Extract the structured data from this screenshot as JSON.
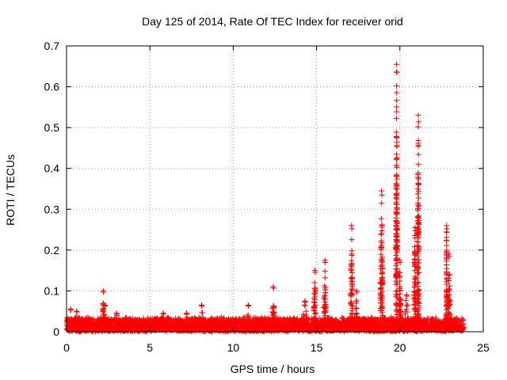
{
  "chart_data": {
    "type": "scatter",
    "title": "Day 125 of 2014, Rate Of TEC Index for receiver orid",
    "xlabel": "GPS time / hours",
    "ylabel": "ROTI / TECUs",
    "xlim": [
      0,
      25
    ],
    "ylim": [
      0,
      0.7
    ],
    "grid": true,
    "marker": "+",
    "color": "#ff0000",
    "x_ticks": [
      0,
      5,
      10,
      15,
      20,
      25
    ],
    "x_tick_labels": [
      "0",
      "5",
      "10",
      "15",
      "20",
      "25"
    ],
    "y_ticks": [
      0,
      0.1,
      0.2,
      0.3,
      0.4,
      0.5,
      0.6,
      0.7
    ],
    "y_tick_labels": [
      "0",
      "0.1",
      "0.2",
      "0.3",
      "0.4",
      "0.5",
      "0.6",
      "0.7"
    ],
    "baseline": {
      "x_start": 0.0,
      "x_end": 23.8,
      "typical_max": 0.03
    },
    "bursts": [
      {
        "x": 0.25,
        "peak": 0.055,
        "width": 0.25
      },
      {
        "x": 0.6,
        "peak": 0.05,
        "width": 0.2
      },
      {
        "x": 2.2,
        "peak": 0.1,
        "width": 0.05
      },
      {
        "x": 2.3,
        "peak": 0.065,
        "width": 0.15
      },
      {
        "x": 3.0,
        "peak": 0.045,
        "width": 0.15
      },
      {
        "x": 5.8,
        "peak": 0.045,
        "width": 0.3
      },
      {
        "x": 7.2,
        "peak": 0.045,
        "width": 0.2
      },
      {
        "x": 8.1,
        "peak": 0.065,
        "width": 0.3
      },
      {
        "x": 10.9,
        "peak": 0.065,
        "width": 0.3
      },
      {
        "x": 12.4,
        "peak": 0.11,
        "width": 0.15
      },
      {
        "x": 14.3,
        "peak": 0.075,
        "width": 0.3
      },
      {
        "x": 14.9,
        "peak": 0.15,
        "width": 0.15
      },
      {
        "x": 15.5,
        "peak": 0.175,
        "width": 0.15
      },
      {
        "x": 17.1,
        "peak": 0.26,
        "width": 0.12
      },
      {
        "x": 17.4,
        "peak": 0.1,
        "width": 0.1
      },
      {
        "x": 18.9,
        "peak": 0.345,
        "width": 0.15
      },
      {
        "x": 19.8,
        "peak": 0.655,
        "width": 0.08
      },
      {
        "x": 20.0,
        "peak": 0.175,
        "width": 0.1
      },
      {
        "x": 20.4,
        "peak": 0.09,
        "width": 0.3
      },
      {
        "x": 20.9,
        "peak": 0.255,
        "width": 0.1
      },
      {
        "x": 21.1,
        "peak": 0.53,
        "width": 0.1
      },
      {
        "x": 22.8,
        "peak": 0.26,
        "width": 0.05
      },
      {
        "x": 22.95,
        "peak": 0.19,
        "width": 0.15
      }
    ]
  }
}
